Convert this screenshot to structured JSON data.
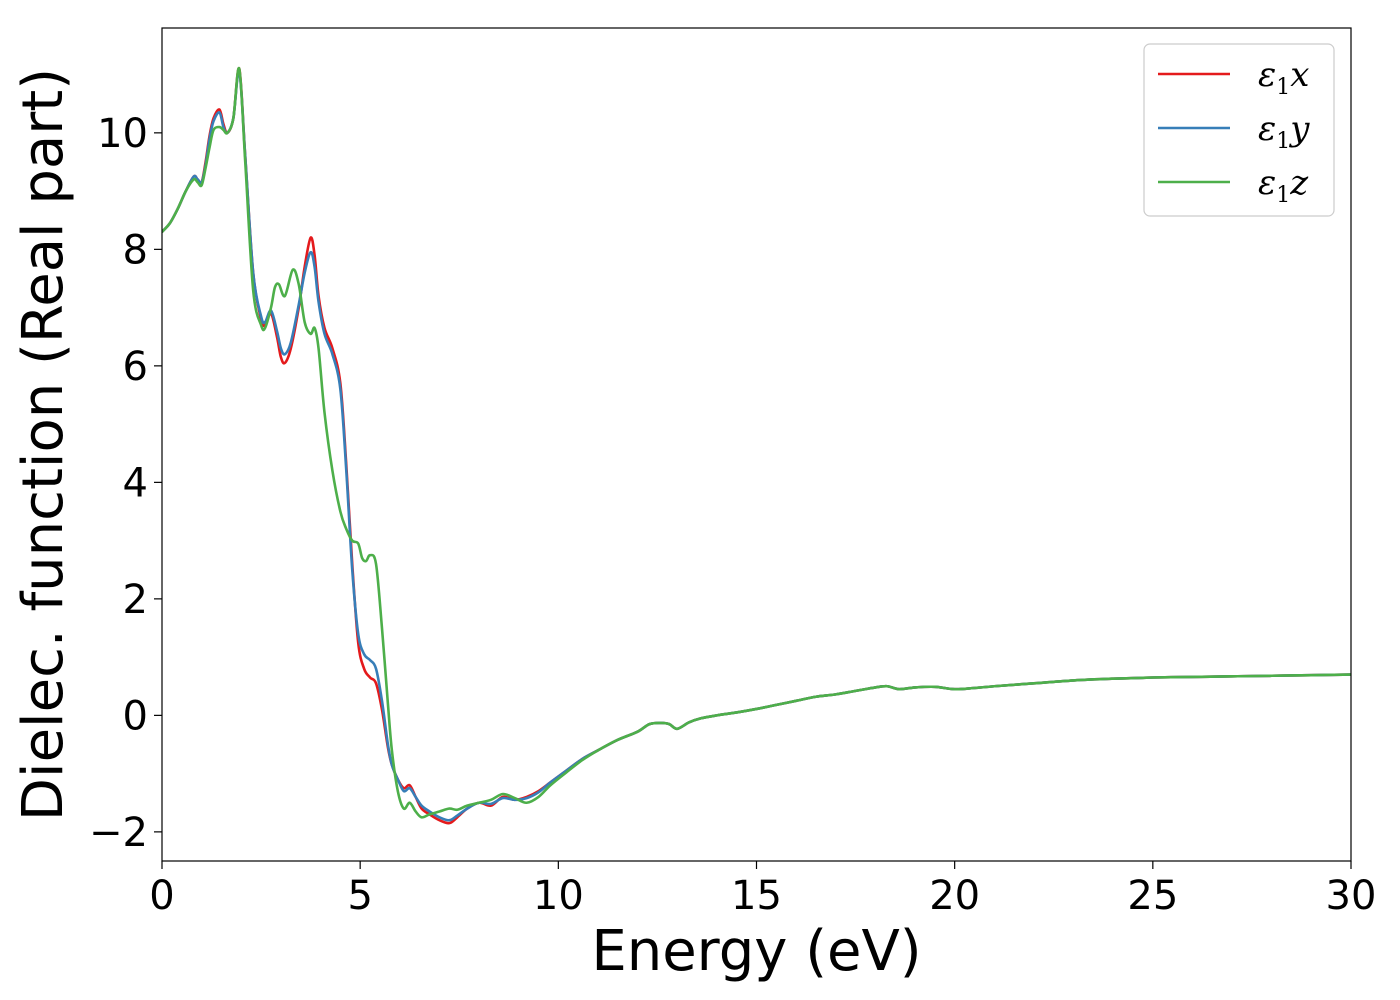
{
  "chart_data": {
    "type": "line",
    "title": "",
    "xlabel": "Energy (eV)",
    "ylabel": "Dielec. function (Real part)",
    "xlim": [
      0,
      30
    ],
    "ylim": [
      -2.5,
      11.8
    ],
    "xticks": [
      0,
      5,
      10,
      15,
      20,
      25,
      30
    ],
    "xtick_labels": [
      "0",
      "5",
      "10",
      "15",
      "20",
      "25",
      "30"
    ],
    "yticks": [
      -2,
      0,
      2,
      4,
      6,
      8,
      10
    ],
    "ytick_labels": [
      "−2",
      "0",
      "2",
      "4",
      "6",
      "8",
      "10"
    ],
    "grid": false,
    "legend_position": "top-right",
    "series": [
      {
        "name": "ε1x",
        "legend_main": "ε",
        "legend_sub": "1",
        "legend_tail": "x",
        "color": "#e41a1c",
        "x": [
          0,
          0.2,
          0.4,
          0.6,
          0.8,
          0.9,
          1.0,
          1.1,
          1.2,
          1.3,
          1.45,
          1.55,
          1.65,
          1.8,
          1.95,
          2.1,
          2.3,
          2.5,
          2.6,
          2.75,
          2.9,
          3.0,
          3.1,
          3.25,
          3.45,
          3.6,
          3.75,
          3.85,
          3.95,
          4.1,
          4.3,
          4.5,
          4.65,
          4.8,
          4.95,
          5.1,
          5.25,
          5.4,
          5.55,
          5.7,
          5.8,
          5.95,
          6.1,
          6.25,
          6.4,
          6.55,
          6.75,
          7.0,
          7.25,
          7.45,
          7.7,
          8.0,
          8.3,
          8.6,
          8.9,
          9.2,
          9.5,
          9.8,
          10.2,
          10.6,
          11.0,
          11.5,
          12.0,
          12.3,
          12.6,
          12.8,
          13.0,
          13.3,
          13.6,
          14.0,
          14.5,
          15.0,
          15.5,
          16.0,
          16.5,
          17.0,
          17.5,
          18.0,
          18.3,
          18.6,
          19.0,
          19.5,
          20.0,
          20.5,
          21.0,
          22.0,
          23.0,
          24.0,
          25.0,
          26.0,
          27.0,
          28.0,
          29.0,
          30.0
        ],
        "y": [
          8.3,
          8.45,
          8.7,
          9.0,
          9.25,
          9.2,
          9.15,
          9.5,
          9.95,
          10.25,
          10.4,
          10.15,
          10.0,
          10.25,
          11.1,
          9.6,
          7.6,
          6.8,
          6.7,
          6.9,
          6.5,
          6.15,
          6.05,
          6.3,
          7.0,
          7.7,
          8.2,
          7.9,
          7.2,
          6.65,
          6.3,
          5.7,
          4.3,
          2.6,
          1.25,
          0.8,
          0.65,
          0.55,
          0.1,
          -0.55,
          -0.85,
          -1.1,
          -1.25,
          -1.2,
          -1.4,
          -1.6,
          -1.7,
          -1.8,
          -1.85,
          -1.75,
          -1.6,
          -1.5,
          -1.55,
          -1.4,
          -1.45,
          -1.4,
          -1.3,
          -1.15,
          -0.95,
          -0.75,
          -0.6,
          -0.42,
          -0.28,
          -0.15,
          -0.13,
          -0.15,
          -0.23,
          -0.12,
          -0.05,
          0.0,
          0.05,
          0.11,
          0.18,
          0.25,
          0.32,
          0.36,
          0.42,
          0.48,
          0.5,
          0.45,
          0.48,
          0.49,
          0.45,
          0.47,
          0.5,
          0.55,
          0.6,
          0.63,
          0.65,
          0.66,
          0.67,
          0.68,
          0.69,
          0.7
        ]
      },
      {
        "name": "ε1y",
        "legend_main": "ε",
        "legend_sub": "1",
        "legend_tail": "y",
        "color": "#377eb8",
        "x": [
          0,
          0.2,
          0.4,
          0.6,
          0.8,
          0.9,
          1.0,
          1.1,
          1.2,
          1.3,
          1.45,
          1.55,
          1.65,
          1.8,
          1.95,
          2.1,
          2.3,
          2.5,
          2.6,
          2.75,
          2.9,
          3.0,
          3.1,
          3.25,
          3.45,
          3.6,
          3.75,
          3.85,
          3.95,
          4.1,
          4.3,
          4.5,
          4.65,
          4.8,
          4.95,
          5.1,
          5.25,
          5.4,
          5.55,
          5.7,
          5.8,
          5.95,
          6.1,
          6.25,
          6.4,
          6.55,
          6.75,
          7.0,
          7.25,
          7.45,
          7.7,
          8.0,
          8.3,
          8.6,
          8.9,
          9.2,
          9.5,
          9.8,
          10.2,
          10.6,
          11.0,
          11.5,
          12.0,
          12.3,
          12.6,
          12.8,
          13.0,
          13.3,
          13.6,
          14.0,
          14.5,
          15.0,
          15.5,
          16.0,
          16.5,
          17.0,
          17.5,
          18.0,
          18.3,
          18.6,
          19.0,
          19.5,
          20.0,
          20.5,
          21.0,
          22.0,
          23.0,
          24.0,
          25.0,
          26.0,
          27.0,
          28.0,
          29.0,
          30.0
        ],
        "y": [
          8.3,
          8.45,
          8.7,
          9.0,
          9.25,
          9.2,
          9.15,
          9.45,
          9.9,
          10.2,
          10.35,
          10.1,
          10.0,
          10.25,
          11.05,
          9.6,
          7.6,
          6.85,
          6.75,
          6.95,
          6.6,
          6.3,
          6.2,
          6.4,
          7.05,
          7.6,
          7.95,
          7.7,
          7.1,
          6.55,
          6.2,
          5.6,
          4.2,
          2.5,
          1.4,
          1.05,
          0.95,
          0.8,
          0.25,
          -0.5,
          -0.85,
          -1.1,
          -1.3,
          -1.25,
          -1.4,
          -1.55,
          -1.65,
          -1.75,
          -1.8,
          -1.72,
          -1.6,
          -1.5,
          -1.52,
          -1.42,
          -1.45,
          -1.42,
          -1.32,
          -1.15,
          -0.95,
          -0.75,
          -0.6,
          -0.42,
          -0.28,
          -0.15,
          -0.13,
          -0.15,
          -0.23,
          -0.12,
          -0.05,
          0.0,
          0.05,
          0.11,
          0.18,
          0.25,
          0.32,
          0.36,
          0.42,
          0.48,
          0.5,
          0.45,
          0.48,
          0.49,
          0.45,
          0.47,
          0.5,
          0.55,
          0.6,
          0.63,
          0.65,
          0.66,
          0.67,
          0.68,
          0.69,
          0.7
        ]
      },
      {
        "name": "ε1z",
        "legend_main": "ε",
        "legend_sub": "1",
        "legend_tail": "z",
        "color": "#4daf4a",
        "x": [
          0,
          0.2,
          0.4,
          0.6,
          0.8,
          0.9,
          1.0,
          1.1,
          1.2,
          1.3,
          1.45,
          1.55,
          1.65,
          1.8,
          1.95,
          2.1,
          2.3,
          2.5,
          2.6,
          2.75,
          2.85,
          2.95,
          3.1,
          3.3,
          3.45,
          3.6,
          3.75,
          3.85,
          3.95,
          4.1,
          4.3,
          4.5,
          4.65,
          4.8,
          4.95,
          5.05,
          5.15,
          5.25,
          5.4,
          5.55,
          5.7,
          5.8,
          5.95,
          6.1,
          6.25,
          6.4,
          6.55,
          6.75,
          7.0,
          7.25,
          7.45,
          7.7,
          8.0,
          8.3,
          8.6,
          8.9,
          9.2,
          9.5,
          9.8,
          10.2,
          10.6,
          11.0,
          11.5,
          12.0,
          12.3,
          12.6,
          12.8,
          13.0,
          13.3,
          13.6,
          14.0,
          14.5,
          15.0,
          15.5,
          16.0,
          16.5,
          17.0,
          17.5,
          18.0,
          18.3,
          18.6,
          19.0,
          19.5,
          20.0,
          20.5,
          21.0,
          22.0,
          23.0,
          24.0,
          25.0,
          26.0,
          27.0,
          28.0,
          29.0,
          30.0
        ],
        "y": [
          8.3,
          8.45,
          8.7,
          9.0,
          9.2,
          9.15,
          9.1,
          9.4,
          9.75,
          10.05,
          10.1,
          10.05,
          10.0,
          10.25,
          11.1,
          9.5,
          7.3,
          6.7,
          6.65,
          7.0,
          7.35,
          7.4,
          7.2,
          7.65,
          7.4,
          6.75,
          6.55,
          6.65,
          6.3,
          5.2,
          4.2,
          3.5,
          3.2,
          3.0,
          2.95,
          2.7,
          2.65,
          2.75,
          2.6,
          1.5,
          0.2,
          -0.6,
          -1.3,
          -1.6,
          -1.5,
          -1.65,
          -1.75,
          -1.7,
          -1.65,
          -1.6,
          -1.62,
          -1.55,
          -1.5,
          -1.45,
          -1.35,
          -1.42,
          -1.5,
          -1.4,
          -1.2,
          -0.98,
          -0.77,
          -0.6,
          -0.42,
          -0.28,
          -0.15,
          -0.13,
          -0.15,
          -0.23,
          -0.12,
          -0.05,
          0.0,
          0.05,
          0.11,
          0.18,
          0.25,
          0.32,
          0.36,
          0.42,
          0.48,
          0.5,
          0.45,
          0.48,
          0.49,
          0.45,
          0.47,
          0.5,
          0.55,
          0.6,
          0.63,
          0.65,
          0.66,
          0.67,
          0.68,
          0.69,
          0.7
        ]
      }
    ]
  }
}
